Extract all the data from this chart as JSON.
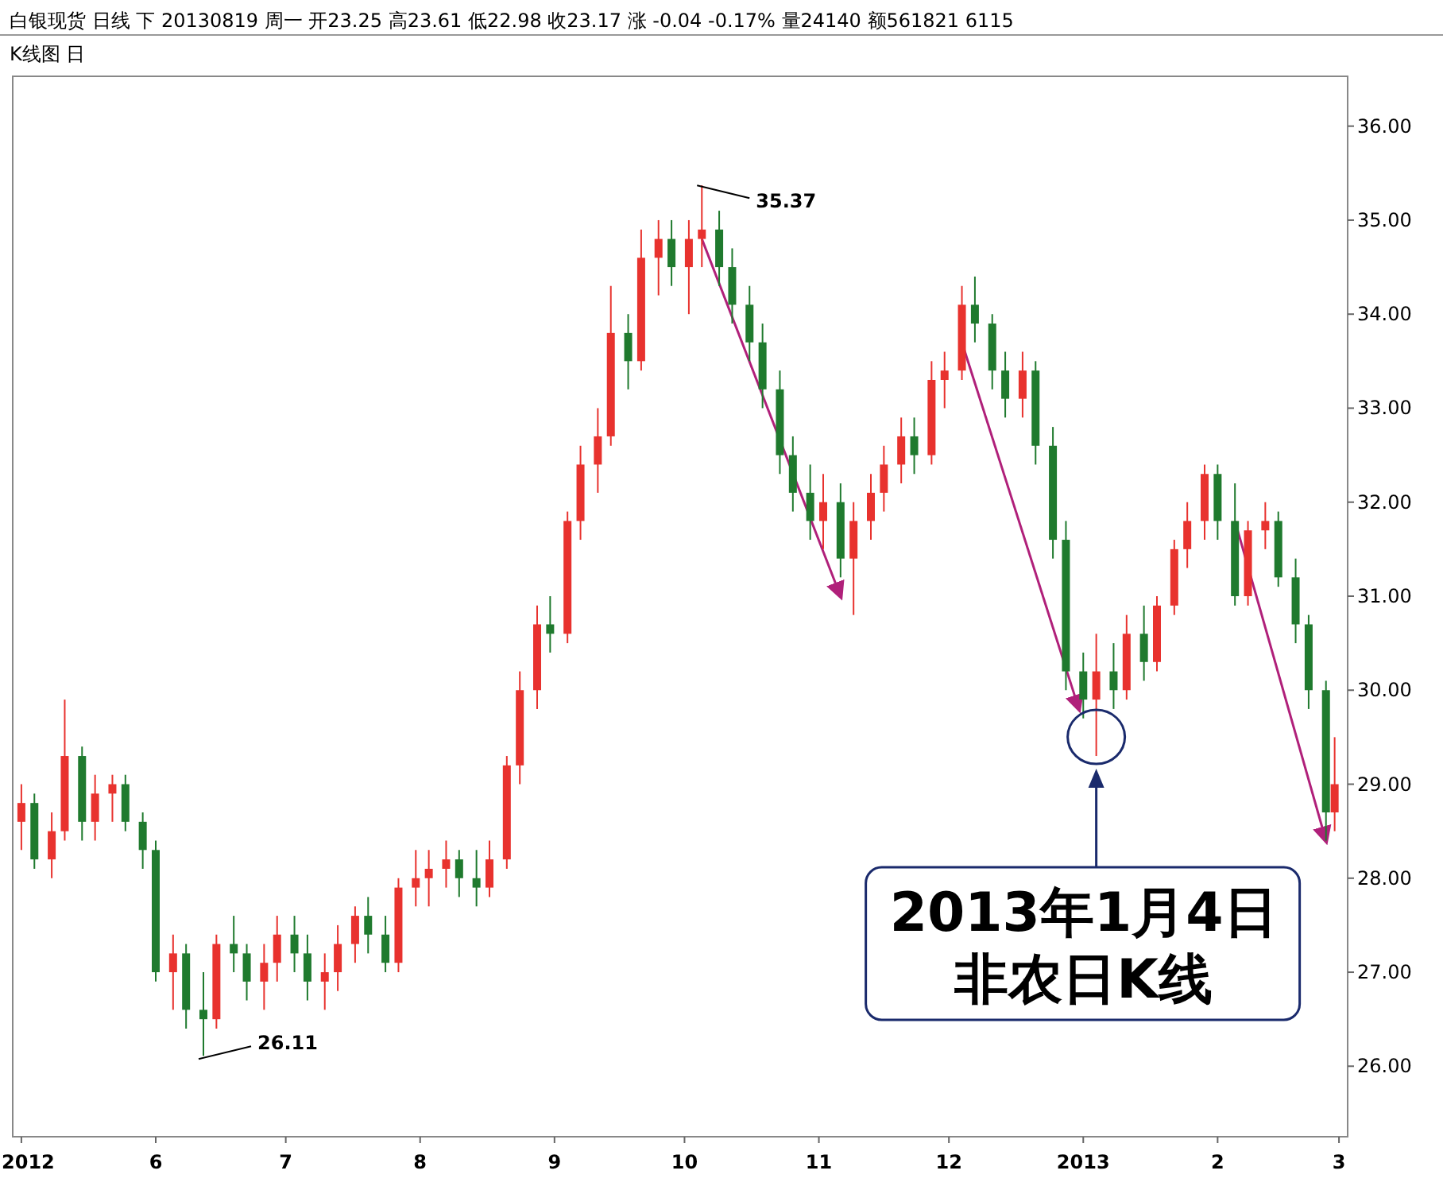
{
  "chart_data": {
    "type": "candlestick",
    "title": "白银现货 日线 下 20130819 周一 开23.25 高23.61 低22.98 收23.17 涨 -0.04 -0.17% 量24140 额561821 6115",
    "subtitle": "K线图 日",
    "x": [
      "2012-05-01",
      "2012-05-04",
      "2012-05-08",
      "2012-05-11",
      "2012-05-15",
      "2012-05-18",
      "2012-05-22",
      "2012-05-25",
      "2012-05-29",
      "2012-06-01",
      "2012-06-05",
      "2012-06-08",
      "2012-06-12",
      "2012-06-15",
      "2012-06-19",
      "2012-06-22",
      "2012-06-26",
      "2012-06-29",
      "2012-07-03",
      "2012-07-06",
      "2012-07-10",
      "2012-07-13",
      "2012-07-17",
      "2012-07-20",
      "2012-07-24",
      "2012-07-27",
      "2012-07-31",
      "2012-08-03",
      "2012-08-07",
      "2012-08-10",
      "2012-08-14",
      "2012-08-17",
      "2012-08-21",
      "2012-08-24",
      "2012-08-28",
      "2012-08-31",
      "2012-09-04",
      "2012-09-07",
      "2012-09-11",
      "2012-09-14",
      "2012-09-18",
      "2012-09-21",
      "2012-09-25",
      "2012-09-28",
      "2012-10-02",
      "2012-10-05",
      "2012-10-09",
      "2012-10-12",
      "2012-10-16",
      "2012-10-19",
      "2012-10-23",
      "2012-10-26",
      "2012-10-30",
      "2012-11-02",
      "2012-11-06",
      "2012-11-09",
      "2012-11-13",
      "2012-11-16",
      "2012-11-20",
      "2012-11-23",
      "2012-11-27",
      "2012-11-30",
      "2012-12-04",
      "2012-12-07",
      "2012-12-11",
      "2012-12-14",
      "2012-12-18",
      "2012-12-21",
      "2012-12-25",
      "2012-12-28",
      "2013-01-01",
      "2013-01-04",
      "2013-01-08",
      "2013-01-11",
      "2013-01-15",
      "2013-01-18",
      "2013-01-22",
      "2013-01-25",
      "2013-01-29",
      "2013-02-01",
      "2013-02-05",
      "2013-02-08",
      "2013-02-12",
      "2013-02-15",
      "2013-02-19",
      "2013-02-22",
      "2013-02-26",
      "2013-02-28"
    ],
    "ohlc": [
      [
        28.6,
        29.0,
        28.3,
        28.8
      ],
      [
        28.8,
        28.9,
        28.1,
        28.2
      ],
      [
        28.2,
        28.7,
        28.0,
        28.5
      ],
      [
        28.5,
        29.9,
        28.4,
        29.3
      ],
      [
        29.3,
        29.4,
        28.4,
        28.6
      ],
      [
        28.6,
        29.1,
        28.4,
        28.9
      ],
      [
        28.9,
        29.1,
        28.6,
        29.0
      ],
      [
        29.0,
        29.1,
        28.5,
        28.6
      ],
      [
        28.6,
        28.7,
        28.1,
        28.3
      ],
      [
        28.3,
        28.4,
        26.9,
        27.0
      ],
      [
        27.0,
        27.4,
        26.6,
        27.2
      ],
      [
        27.2,
        27.3,
        26.4,
        26.6
      ],
      [
        26.6,
        27.0,
        26.11,
        26.5
      ],
      [
        26.5,
        27.4,
        26.4,
        27.3
      ],
      [
        27.3,
        27.6,
        27.0,
        27.2
      ],
      [
        27.2,
        27.3,
        26.7,
        26.9
      ],
      [
        26.9,
        27.3,
        26.6,
        27.1
      ],
      [
        27.1,
        27.6,
        26.9,
        27.4
      ],
      [
        27.4,
        27.6,
        27.0,
        27.2
      ],
      [
        27.2,
        27.4,
        26.7,
        26.9
      ],
      [
        26.9,
        27.2,
        26.6,
        27.0
      ],
      [
        27.0,
        27.5,
        26.8,
        27.3
      ],
      [
        27.3,
        27.7,
        27.1,
        27.6
      ],
      [
        27.6,
        27.8,
        27.2,
        27.4
      ],
      [
        27.4,
        27.6,
        27.0,
        27.1
      ],
      [
        27.1,
        28.0,
        27.0,
        27.9
      ],
      [
        27.9,
        28.3,
        27.7,
        28.0
      ],
      [
        28.0,
        28.3,
        27.7,
        28.1
      ],
      [
        28.1,
        28.4,
        27.9,
        28.2
      ],
      [
        28.2,
        28.3,
        27.8,
        28.0
      ],
      [
        28.0,
        28.3,
        27.7,
        27.9
      ],
      [
        27.9,
        28.4,
        27.8,
        28.2
      ],
      [
        28.2,
        29.3,
        28.1,
        29.2
      ],
      [
        29.2,
        30.2,
        29.0,
        30.0
      ],
      [
        30.0,
        30.9,
        29.8,
        30.7
      ],
      [
        30.7,
        31.0,
        30.4,
        30.6
      ],
      [
        30.6,
        31.9,
        30.5,
        31.8
      ],
      [
        31.8,
        32.6,
        31.6,
        32.4
      ],
      [
        32.4,
        33.0,
        32.1,
        32.7
      ],
      [
        32.7,
        34.3,
        32.6,
        33.8
      ],
      [
        33.8,
        34.0,
        33.2,
        33.5
      ],
      [
        33.5,
        34.9,
        33.4,
        34.6
      ],
      [
        34.6,
        35.0,
        34.2,
        34.8
      ],
      [
        34.8,
        35.0,
        34.3,
        34.5
      ],
      [
        34.5,
        35.0,
        34.0,
        34.8
      ],
      [
        34.8,
        35.37,
        34.5,
        34.9
      ],
      [
        34.9,
        35.1,
        34.3,
        34.5
      ],
      [
        34.5,
        34.7,
        33.9,
        34.1
      ],
      [
        34.1,
        34.3,
        33.5,
        33.7
      ],
      [
        33.7,
        33.9,
        33.0,
        33.2
      ],
      [
        33.2,
        33.4,
        32.3,
        32.5
      ],
      [
        32.5,
        32.7,
        31.9,
        32.1
      ],
      [
        32.1,
        32.4,
        31.6,
        31.8
      ],
      [
        31.8,
        32.3,
        31.5,
        32.0
      ],
      [
        32.0,
        32.2,
        31.2,
        31.4
      ],
      [
        31.4,
        32.0,
        30.8,
        31.8
      ],
      [
        31.8,
        32.3,
        31.6,
        32.1
      ],
      [
        32.1,
        32.6,
        31.9,
        32.4
      ],
      [
        32.4,
        32.9,
        32.2,
        32.7
      ],
      [
        32.7,
        32.9,
        32.3,
        32.5
      ],
      [
        32.5,
        33.5,
        32.4,
        33.3
      ],
      [
        33.3,
        33.6,
        33.0,
        33.4
      ],
      [
        33.4,
        34.3,
        33.3,
        34.1
      ],
      [
        34.1,
        34.4,
        33.7,
        33.9
      ],
      [
        33.9,
        34.0,
        33.2,
        33.4
      ],
      [
        33.4,
        33.6,
        32.9,
        33.1
      ],
      [
        33.1,
        33.6,
        32.9,
        33.4
      ],
      [
        33.4,
        33.5,
        32.4,
        32.6
      ],
      [
        32.6,
        32.8,
        31.4,
        31.6
      ],
      [
        31.6,
        31.8,
        30.0,
        30.2
      ],
      [
        30.2,
        30.4,
        29.7,
        29.9
      ],
      [
        29.9,
        30.6,
        29.3,
        30.2
      ],
      [
        30.2,
        30.5,
        29.8,
        30.0
      ],
      [
        30.0,
        30.8,
        29.9,
        30.6
      ],
      [
        30.6,
        30.9,
        30.1,
        30.3
      ],
      [
        30.3,
        31.0,
        30.2,
        30.9
      ],
      [
        30.9,
        31.6,
        30.8,
        31.5
      ],
      [
        31.5,
        32.0,
        31.3,
        31.8
      ],
      [
        31.8,
        32.4,
        31.6,
        32.3
      ],
      [
        32.3,
        32.4,
        31.6,
        31.8
      ],
      [
        31.8,
        32.2,
        30.9,
        31.0
      ],
      [
        31.0,
        31.8,
        30.9,
        31.7
      ],
      [
        31.7,
        32.0,
        31.5,
        31.8
      ],
      [
        31.8,
        31.9,
        31.1,
        31.2
      ],
      [
        31.2,
        31.4,
        30.5,
        30.7
      ],
      [
        30.7,
        30.8,
        29.8,
        30.0
      ],
      [
        30.0,
        30.1,
        28.4,
        28.7
      ],
      [
        28.7,
        29.5,
        28.5,
        29.0
      ]
    ],
    "xlim": [
      "2012-04-29",
      "2013-03-03"
    ],
    "xticks": [
      {
        "value": "2012-05-01",
        "label": "2012"
      },
      {
        "value": "2012-06-01",
        "label": "6"
      },
      {
        "value": "2012-07-01",
        "label": "7"
      },
      {
        "value": "2012-08-01",
        "label": "8"
      },
      {
        "value": "2012-09-01",
        "label": "9"
      },
      {
        "value": "2012-10-01",
        "label": "10"
      },
      {
        "value": "2012-11-01",
        "label": "11"
      },
      {
        "value": "2012-12-01",
        "label": "12"
      },
      {
        "value": "2013-01-01",
        "label": "2013"
      },
      {
        "value": "2013-02-01",
        "label": "2"
      },
      {
        "value": "2013-03-01",
        "label": "3"
      }
    ],
    "ylim": [
      25.25,
      36.53
    ],
    "yticks": [
      {
        "value": 26,
        "label": "26.00"
      },
      {
        "value": 27,
        "label": "27.00"
      },
      {
        "value": 28,
        "label": "28.00"
      },
      {
        "value": 29,
        "label": "29.00"
      },
      {
        "value": 30,
        "label": "30.00"
      },
      {
        "value": 31,
        "label": "31.00"
      },
      {
        "value": 32,
        "label": "32.00"
      },
      {
        "value": 33,
        "label": "33.00"
      },
      {
        "value": 34,
        "label": "34.00"
      },
      {
        "value": 35,
        "label": "35.00"
      },
      {
        "value": 36,
        "label": "36.00"
      }
    ],
    "annotations": [
      {
        "text": "35.37",
        "x": "2012-10-05",
        "y": 35.37
      },
      {
        "text": "26.11",
        "x": "2012-06-12",
        "y": 26.11
      },
      {
        "text": "2013年1月4日",
        "x": "2013-01-04",
        "y": 29.3
      },
      "非农日K线"
    ]
  }
}
